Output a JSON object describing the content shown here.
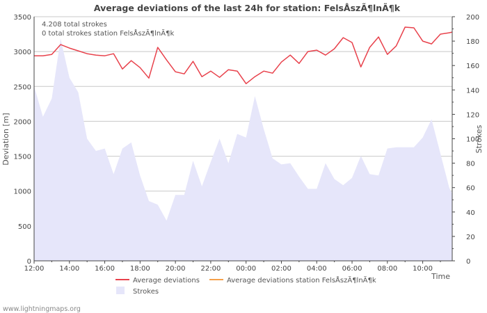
{
  "chart_data": {
    "type": "line",
    "title": "Average deviations of the last 24h for station: FelsÅszÃ¶lnÃ¶k",
    "info_lines": [
      "4.208 total strokes",
      "0 total strokes station FelsÅszÃ¶lnÃ¶k"
    ],
    "xlabel": "Time",
    "ylabel_left": "Deviation  [m]",
    "ylabel_right": "Strokes",
    "x_ticks": [
      "12:00",
      "14:00",
      "16:00",
      "18:00",
      "20:00",
      "22:00",
      "00:00",
      "02:00",
      "04:00",
      "06:00",
      "08:00",
      "10:00"
    ],
    "x_range_hours": [
      0,
      23.67
    ],
    "y_left_range": [
      0,
      3500
    ],
    "y_left_ticks": [
      0,
      500,
      1000,
      1500,
      2000,
      2500,
      3000,
      3500
    ],
    "y_right_range": [
      0,
      200
    ],
    "y_right_ticks": [
      0,
      20,
      40,
      60,
      80,
      100,
      120,
      140,
      160,
      180,
      200
    ],
    "grid": true,
    "legend": [
      {
        "label": "Average deviations",
        "color": "#e8414b",
        "kind": "line"
      },
      {
        "label": "Average deviations station FelsÅszÃ¶lnÃ¶k",
        "color": "#f5a04a",
        "kind": "line"
      },
      {
        "label": "Strokes",
        "color": "#e6e6fa",
        "kind": "area"
      }
    ],
    "series": [
      {
        "name": "Average deviations",
        "axis": "left",
        "color": "#e8414b",
        "x": [
          0,
          0.5,
          1,
          1.5,
          2,
          2.5,
          3,
          3.5,
          4,
          4.5,
          5,
          5.5,
          6,
          6.5,
          7,
          7.5,
          8,
          8.5,
          9,
          9.5,
          10,
          10.5,
          11,
          11.5,
          12,
          12.5,
          13,
          13.5,
          14,
          14.5,
          15,
          15.5,
          16,
          16.5,
          17,
          17.5,
          18,
          18.5,
          19,
          19.5,
          20,
          20.5,
          21,
          21.5,
          22,
          22.5,
          23,
          23.5,
          23.67
        ],
        "values": [
          2940,
          2940,
          2960,
          3100,
          3050,
          3010,
          2970,
          2950,
          2940,
          2970,
          2750,
          2870,
          2770,
          2620,
          3060,
          2880,
          2710,
          2680,
          2860,
          2640,
          2720,
          2630,
          2740,
          2720,
          2540,
          2640,
          2720,
          2690,
          2850,
          2950,
          2830,
          3000,
          3020,
          2950,
          3040,
          3200,
          3130,
          2780,
          3060,
          3210,
          2960,
          3080,
          3350,
          3340,
          3150,
          3110,
          3250,
          3270,
          3280
        ]
      },
      {
        "name": "Strokes",
        "axis": "right",
        "color": "#e6e6fa",
        "x": [
          0,
          0.5,
          1,
          1.5,
          2,
          2.5,
          3,
          3.5,
          4,
          4.5,
          5,
          5.5,
          6,
          6.5,
          7,
          7.5,
          8,
          8.5,
          9,
          9.5,
          10,
          10.5,
          11,
          11.5,
          12,
          12.5,
          13,
          13.5,
          14,
          14.5,
          15,
          15.5,
          16,
          16.5,
          17,
          17.5,
          18,
          18.5,
          19,
          19.5,
          20,
          20.5,
          21,
          21.5,
          22,
          22.5,
          23,
          23.5,
          23.67
        ],
        "values": [
          143,
          118,
          133,
          182,
          150,
          138,
          100,
          90,
          92,
          71,
          92,
          97,
          70,
          49,
          46,
          33,
          54,
          54,
          82,
          61,
          81,
          100,
          80,
          104,
          101,
          135,
          108,
          84,
          79,
          80,
          69,
          59,
          59,
          80,
          67,
          62,
          68,
          86,
          71,
          70,
          92,
          93,
          93,
          93,
          101,
          116,
          88,
          60,
          55
        ]
      }
    ],
    "footer": "www.lightningmaps.org"
  }
}
